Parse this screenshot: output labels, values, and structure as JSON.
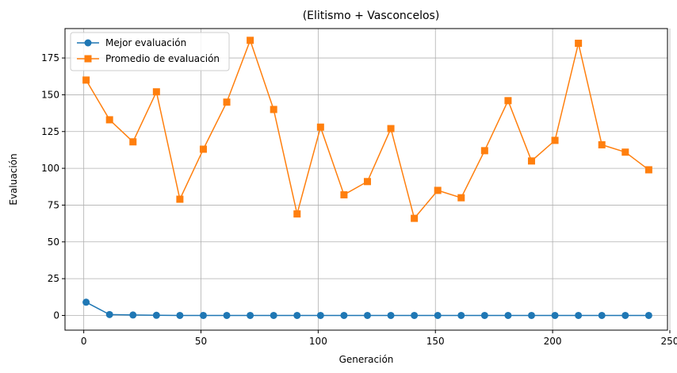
{
  "chart_data": {
    "type": "line",
    "title": "(Elitismo + Vasconcelos)",
    "xlabel": "Generación",
    "ylabel": "Evaluación",
    "xlim": [
      -8,
      249
    ],
    "ylim": [
      -10,
      195
    ],
    "xticks": [
      0,
      50,
      100,
      150,
      200,
      250
    ],
    "yticks": [
      0,
      25,
      50,
      75,
      100,
      125,
      150,
      175
    ],
    "grid": true,
    "legend_position": "upper-left",
    "x": [
      1,
      11,
      21,
      31,
      41,
      51,
      61,
      71,
      81,
      91,
      101,
      111,
      121,
      131,
      141,
      151,
      161,
      171,
      181,
      191,
      201,
      211,
      221,
      231,
      241
    ],
    "series": [
      {
        "name": "Mejor evaluación",
        "color": "#1f77b4",
        "marker": "circle",
        "values": [
          9,
          0.6,
          0.3,
          0.1,
          0,
          0,
          0,
          0,
          0,
          0,
          0,
          0,
          0,
          0,
          0,
          0,
          0,
          0,
          0,
          0,
          0,
          0,
          0,
          0,
          0
        ]
      },
      {
        "name": "Promedio de evaluación",
        "color": "#ff7f0e",
        "marker": "square",
        "values": [
          160,
          133,
          118,
          152,
          79,
          113,
          145,
          187,
          140,
          69,
          128,
          82,
          91,
          127,
          66,
          85,
          80,
          112,
          146,
          105,
          119,
          185,
          116,
          111,
          99
        ]
      }
    ]
  }
}
